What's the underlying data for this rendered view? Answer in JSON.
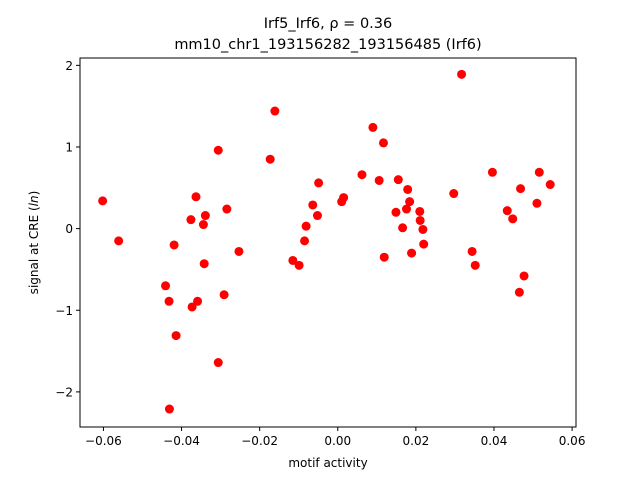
{
  "chart_data": {
    "type": "scatter",
    "title_line1": "Irf5_Irf6, ρ = 0.36",
    "title_line2": "mm10_chr1_193156282_193156485 (Irf6)",
    "xlabel": "motif activity",
    "ylabel": "signal at CRE (ln)",
    "xlim": [
      -0.066,
      0.061
    ],
    "ylim": [
      -2.43,
      2.09
    ],
    "x_ticks": [
      -0.06,
      -0.04,
      -0.02,
      0.0,
      0.02,
      0.04,
      0.06
    ],
    "x_tick_labels": [
      "−0.06",
      "−0.04",
      "−0.02",
      "0.00",
      "0.02",
      "0.04",
      "0.06"
    ],
    "y_ticks": [
      -2,
      -1,
      0,
      1,
      2
    ],
    "y_tick_labels": [
      "−2",
      "−1",
      "0",
      "1",
      "2"
    ],
    "grid": false,
    "marker_color": "#ff0000",
    "points": [
      {
        "x": -0.0602,
        "y": 0.34
      },
      {
        "x": -0.0561,
        "y": -0.15
      },
      {
        "x": -0.0441,
        "y": -0.7
      },
      {
        "x": -0.0432,
        "y": -0.89
      },
      {
        "x": -0.0431,
        "y": -2.21
      },
      {
        "x": -0.0419,
        "y": -0.2
      },
      {
        "x": -0.0414,
        "y": -1.31
      },
      {
        "x": -0.0376,
        "y": 0.11
      },
      {
        "x": -0.0373,
        "y": -0.96
      },
      {
        "x": -0.0363,
        "y": 0.39
      },
      {
        "x": -0.0359,
        "y": -0.89
      },
      {
        "x": -0.0344,
        "y": 0.05
      },
      {
        "x": -0.0342,
        "y": -0.43
      },
      {
        "x": -0.0339,
        "y": 0.16
      },
      {
        "x": -0.0306,
        "y": 0.96
      },
      {
        "x": -0.0306,
        "y": -1.64
      },
      {
        "x": -0.0291,
        "y": -0.81
      },
      {
        "x": -0.0284,
        "y": 0.24
      },
      {
        "x": -0.0253,
        "y": -0.28
      },
      {
        "x": -0.0173,
        "y": 0.85
      },
      {
        "x": -0.0161,
        "y": 1.44
      },
      {
        "x": -0.0115,
        "y": -0.39
      },
      {
        "x": -0.0099,
        "y": -0.45
      },
      {
        "x": -0.0085,
        "y": -0.15
      },
      {
        "x": -0.0081,
        "y": 0.03
      },
      {
        "x": -0.0064,
        "y": 0.29
      },
      {
        "x": -0.0052,
        "y": 0.16
      },
      {
        "x": -0.0049,
        "y": 0.56
      },
      {
        "x": 0.001,
        "y": 0.33
      },
      {
        "x": 0.0015,
        "y": 0.38
      },
      {
        "x": 0.0062,
        "y": 0.66
      },
      {
        "x": 0.009,
        "y": 1.24
      },
      {
        "x": 0.0106,
        "y": 0.59
      },
      {
        "x": 0.0117,
        "y": 1.05
      },
      {
        "x": 0.0119,
        "y": -0.35
      },
      {
        "x": 0.0149,
        "y": 0.2
      },
      {
        "x": 0.0155,
        "y": 0.6
      },
      {
        "x": 0.0166,
        "y": 0.01
      },
      {
        "x": 0.0176,
        "y": 0.24
      },
      {
        "x": 0.0179,
        "y": 0.48
      },
      {
        "x": 0.0184,
        "y": 0.33
      },
      {
        "x": 0.0189,
        "y": -0.3
      },
      {
        "x": 0.021,
        "y": 0.21
      },
      {
        "x": 0.0211,
        "y": 0.1
      },
      {
        "x": 0.0218,
        "y": -0.01
      },
      {
        "x": 0.022,
        "y": -0.19
      },
      {
        "x": 0.0297,
        "y": 0.43
      },
      {
        "x": 0.0317,
        "y": 1.89
      },
      {
        "x": 0.0344,
        "y": -0.28
      },
      {
        "x": 0.0352,
        "y": -0.45
      },
      {
        "x": 0.0396,
        "y": 0.69
      },
      {
        "x": 0.0434,
        "y": 0.22
      },
      {
        "x": 0.0448,
        "y": 0.12
      },
      {
        "x": 0.0465,
        "y": -0.78
      },
      {
        "x": 0.0468,
        "y": 0.49
      },
      {
        "x": 0.0477,
        "y": -0.58
      },
      {
        "x": 0.051,
        "y": 0.31
      },
      {
        "x": 0.0516,
        "y": 0.69
      },
      {
        "x": 0.0544,
        "y": 0.54
      }
    ]
  }
}
